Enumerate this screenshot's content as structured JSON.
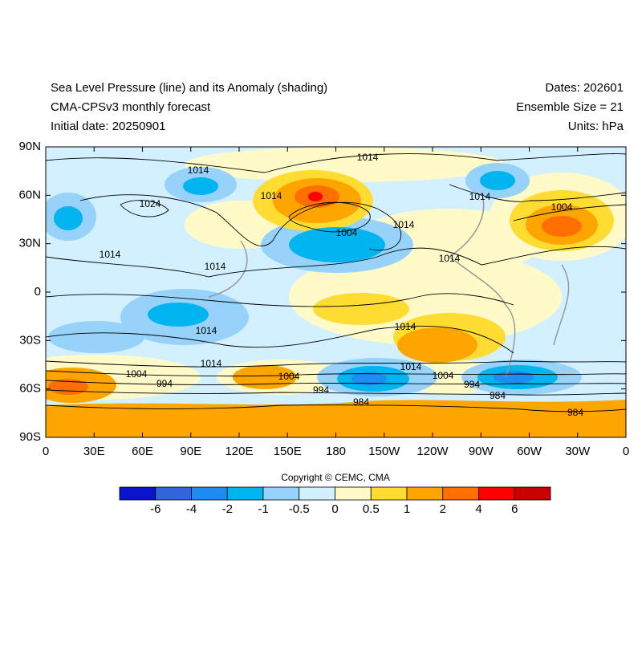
{
  "header": {
    "title": "Sea Level Pressure (line) and its Anomaly (shading)",
    "subtitle": "CMA-CPSv3 monthly forecast",
    "initial_date": "Initial date: 20250901",
    "dates": "Dates: 202601",
    "ensemble": "Ensemble Size = 21",
    "units": "Units: hPa"
  },
  "map": {
    "lat_labels": [
      "90N",
      "60N",
      "30N",
      "0",
      "30S",
      "60S",
      "90S"
    ],
    "lon_labels": [
      "0",
      "30E",
      "60E",
      "90E",
      "120E",
      "150E",
      "180",
      "150W",
      "120W",
      "90W",
      "60W",
      "30W",
      "0"
    ],
    "contour_labels": [
      1014,
      1014,
      1024,
      1014,
      1004,
      1014,
      1014,
      1004,
      1014,
      1014,
      1014,
      1014,
      1014,
      1014,
      1014,
      1004,
      994,
      1004,
      994,
      1004,
      994,
      984,
      984,
      984
    ]
  },
  "copyright": "Copyright © CEMC, CMA",
  "colorbar": {
    "colors": [
      "#0a14c8",
      "#3264dc",
      "#1e8cf0",
      "#00b4f0",
      "#96d2fa",
      "#d2f0ff",
      "#fffac8",
      "#ffdc32",
      "#ffa500",
      "#ff6e00",
      "#ff0000",
      "#c80000"
    ],
    "ticks": [
      -6,
      -4,
      -2,
      -1,
      -0.5,
      0,
      0.5,
      1,
      2,
      4,
      6
    ]
  }
}
